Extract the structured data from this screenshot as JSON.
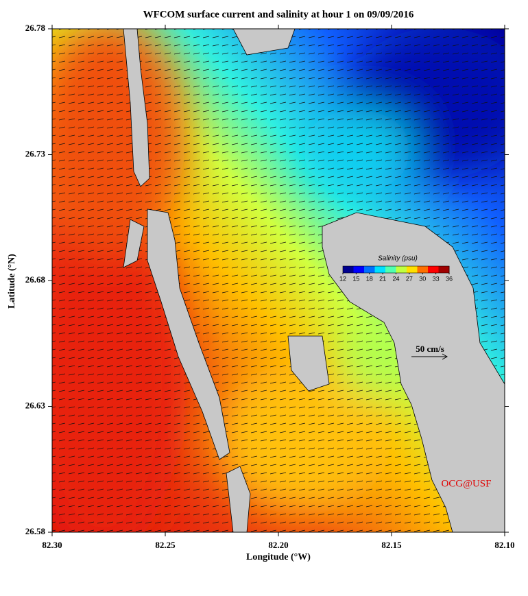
{
  "chart_data": {
    "type": "map",
    "title": "WFCOM surface current and salinity at hour 1 on 09/09/2016",
    "xlabel": "Longitude (°W)",
    "ylabel": "Latitude (°N)",
    "xlim": [
      82.3,
      82.1
    ],
    "xticks": [
      {
        "value": 82.3,
        "label": "82.30"
      },
      {
        "value": 82.25,
        "label": "82.25"
      },
      {
        "value": 82.2,
        "label": "82.20"
      },
      {
        "value": 82.15,
        "label": "82.15"
      },
      {
        "value": 82.1,
        "label": "82.10"
      }
    ],
    "ylim": [
      26.58,
      26.78
    ],
    "yticks": [
      26.58,
      26.63,
      26.68,
      26.73,
      26.78
    ],
    "colorbar": {
      "label": "Salinity (psu)",
      "lim": [
        12,
        36
      ],
      "ticks": [
        12,
        15,
        18,
        21,
        24,
        27,
        30,
        33,
        36
      ],
      "colors": [
        "#00008f",
        "#0000ff",
        "#0070ff",
        "#00e0ff",
        "#50ffb0",
        "#c0ff40",
        "#ffe000",
        "#ff7000",
        "#ff0000",
        "#a00000"
      ]
    },
    "scale_label": "50 cm/s",
    "credit": "OCG@USF"
  }
}
